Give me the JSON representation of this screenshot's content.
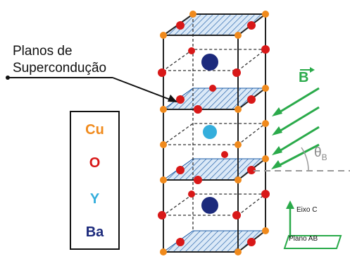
{
  "planes_label": {
    "line1": "Planos de",
    "line2": "Supercondução"
  },
  "legend": {
    "items": [
      {
        "symbol": "Cu",
        "color": "#f08a1c"
      },
      {
        "symbol": "O",
        "color": "#d81818"
      },
      {
        "symbol": "Y",
        "color": "#34aedc"
      },
      {
        "symbol": "Ba",
        "color": "#1c2a7c"
      }
    ]
  },
  "field_label": "B",
  "angle_label": {
    "symbol": "θ",
    "subscript": "B"
  },
  "axis_label": "Eixo C",
  "plane_label": "Plano AB",
  "colors": {
    "cu": "#f08a1c",
    "o": "#d81818",
    "y": "#34aedc",
    "ba": "#1c2a7c",
    "field": "#2aaa4a",
    "hatch": "#1a5aa6",
    "hatch_fill": "#dbe9f7",
    "angle_line": "#9a9a9a"
  }
}
